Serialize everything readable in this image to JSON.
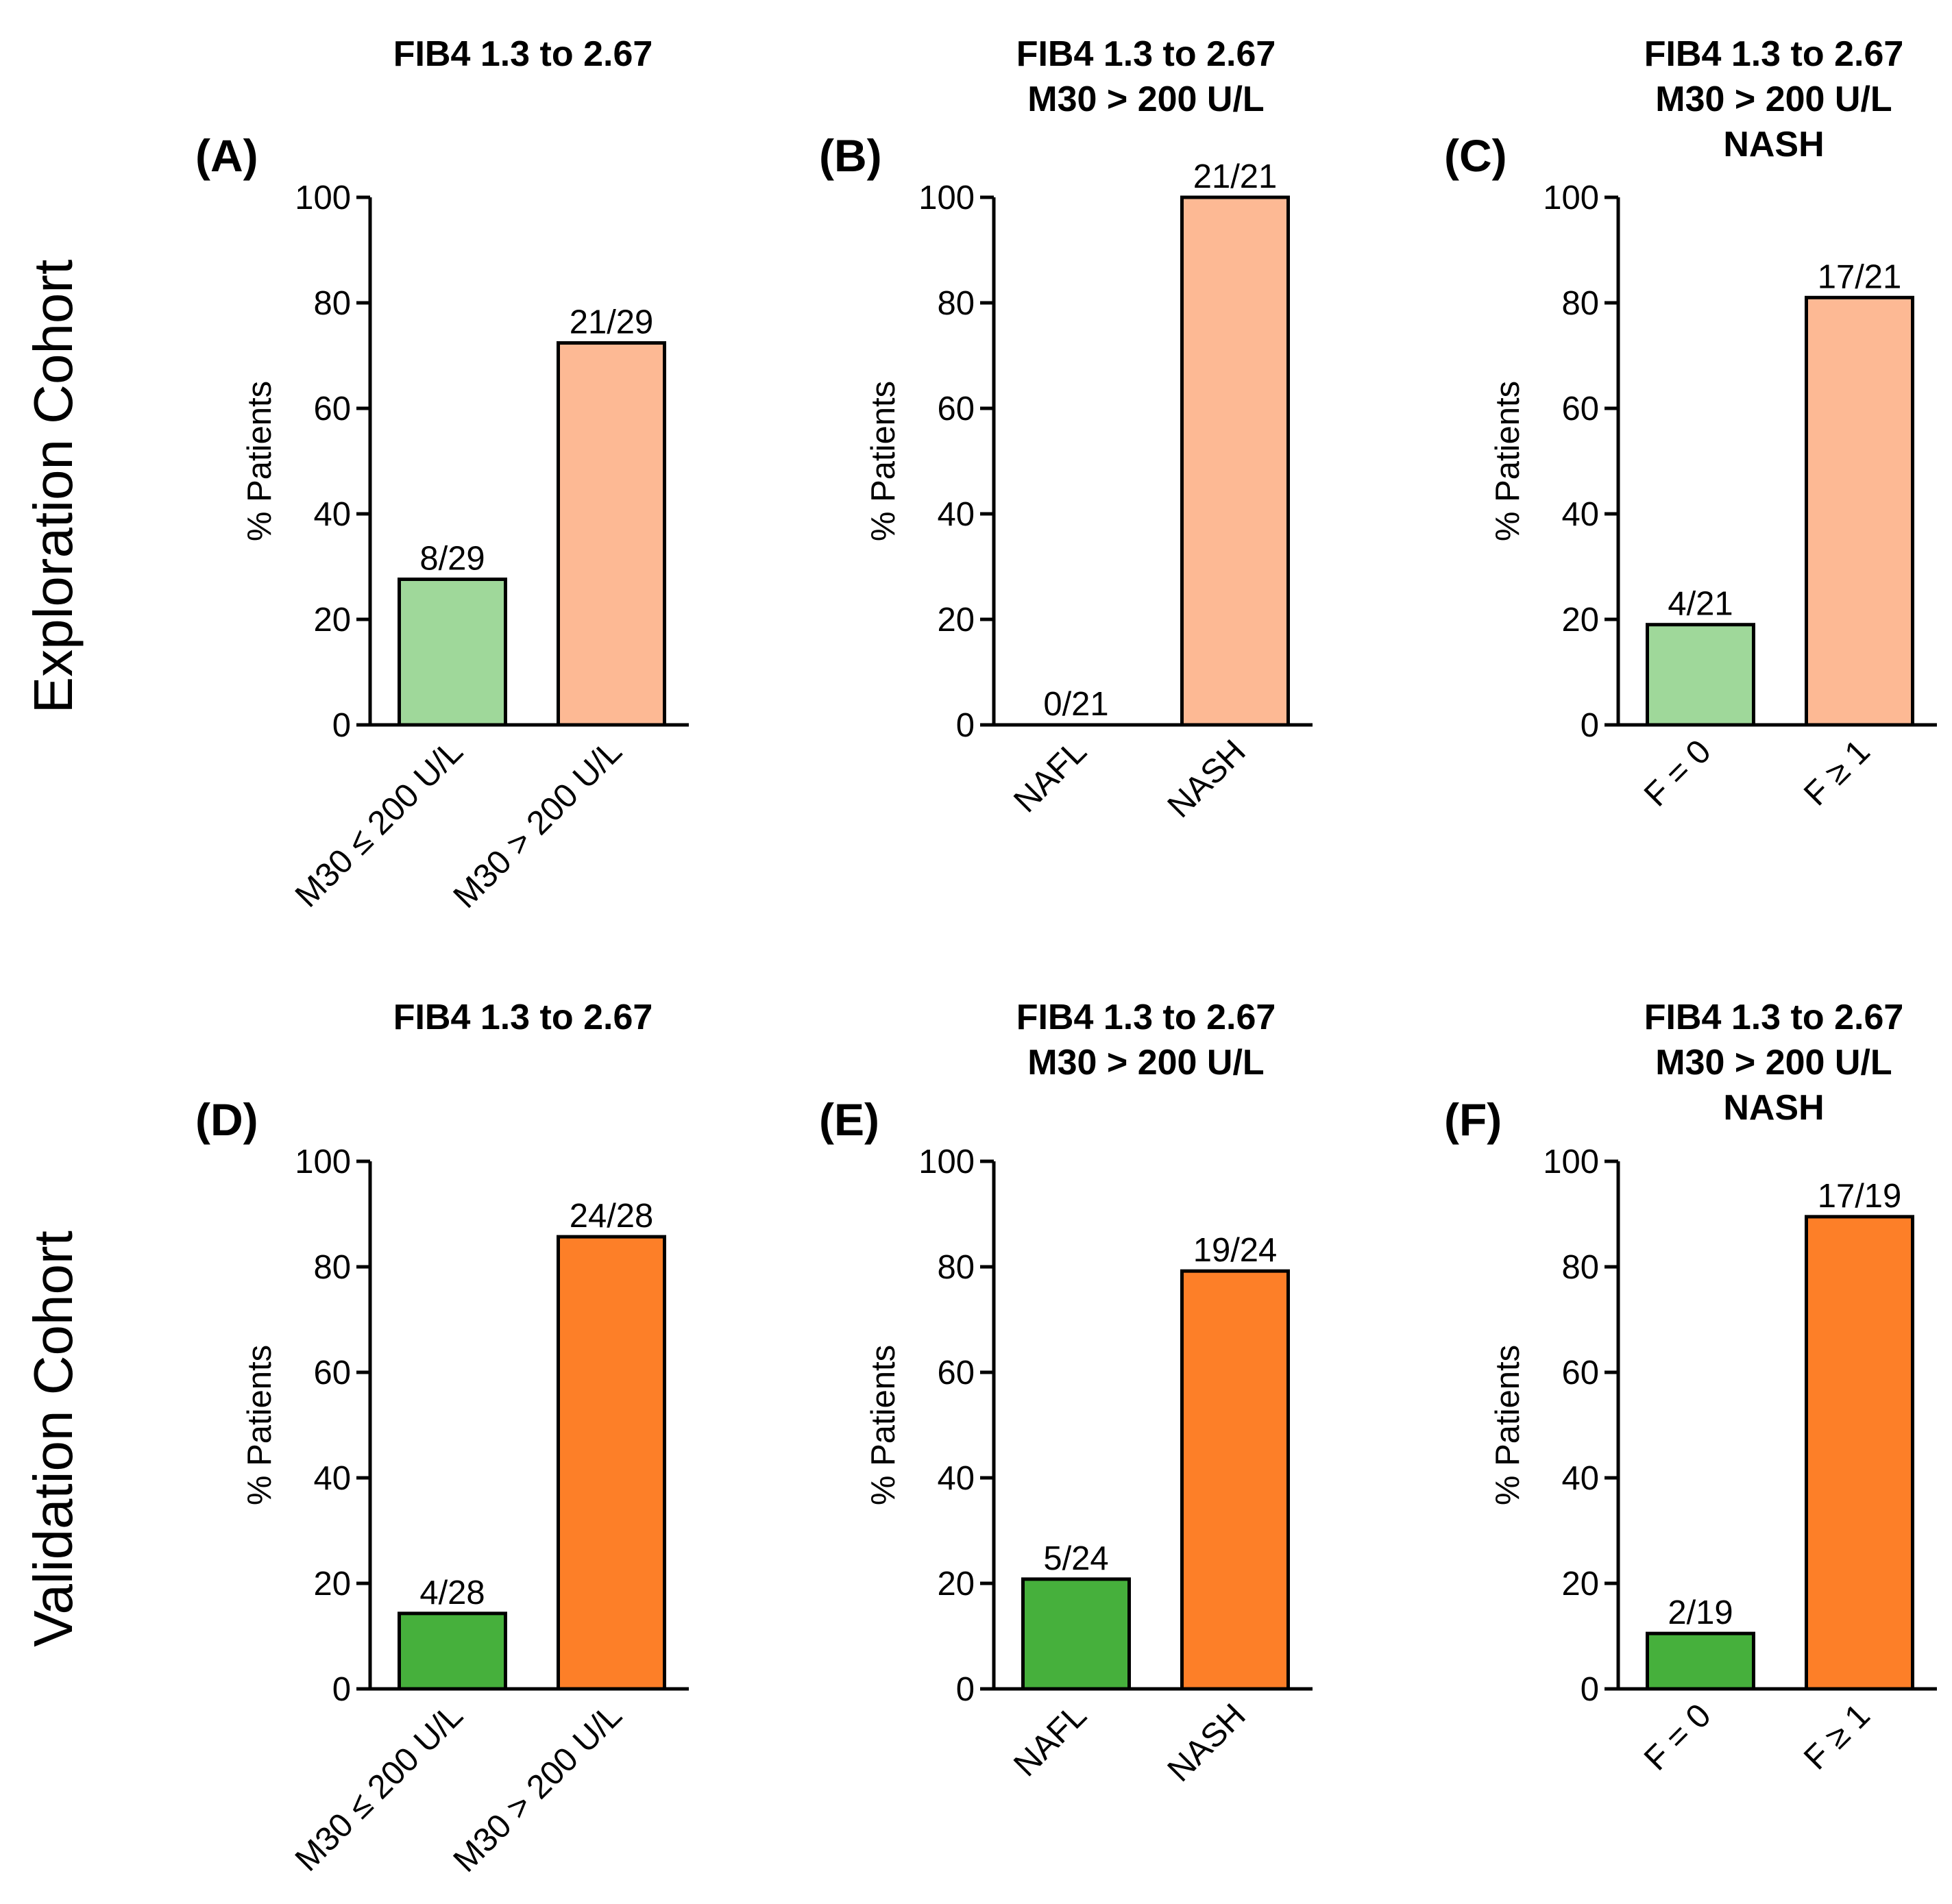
{
  "row_labels": [
    "Exploration Cohort",
    "Validation Cohort"
  ],
  "colors": {
    "light_green": "#9fd89a",
    "light_orange": "#fdb994",
    "green": "#46b03c",
    "orange": "#fd7f28"
  },
  "chart_data": [
    {
      "panel": "(A)",
      "type": "bar",
      "title": [
        "FIB4 1.3 to 2.67"
      ],
      "ylabel": "% Patients",
      "ylim": [
        0,
        100
      ],
      "yticks": [
        "0",
        "20",
        "40",
        "60",
        "80",
        "100"
      ],
      "categories": [
        "M30 ≤ 200 U/L",
        "M30 > 200 U/L"
      ],
      "values": [
        27.6,
        72.4
      ],
      "labels": [
        "8/29",
        "21/29"
      ],
      "colors": [
        "#9fd89a",
        "#fdb994"
      ]
    },
    {
      "panel": "(B)",
      "type": "bar",
      "title": [
        "FIB4 1.3 to 2.67",
        "M30 > 200 U/L"
      ],
      "ylabel": "% Patients",
      "ylim": [
        0,
        100
      ],
      "yticks": [
        "0",
        "20",
        "40",
        "60",
        "80",
        "100"
      ],
      "categories": [
        "NAFL",
        "NASH"
      ],
      "values": [
        0,
        100
      ],
      "labels": [
        "0/21",
        "21/21"
      ],
      "colors": [
        "#9fd89a",
        "#fdb994"
      ]
    },
    {
      "panel": "(C)",
      "type": "bar",
      "title": [
        "FIB4 1.3 to 2.67",
        "M30 > 200 U/L",
        "NASH"
      ],
      "ylabel": "% Patients",
      "ylim": [
        0,
        100
      ],
      "yticks": [
        "0",
        "20",
        "40",
        "60",
        "80",
        "100"
      ],
      "categories": [
        "F = 0",
        "F ≥ 1"
      ],
      "values": [
        19.0,
        81.0
      ],
      "labels": [
        "4/21",
        "17/21"
      ],
      "colors": [
        "#9fd89a",
        "#fdb994"
      ]
    },
    {
      "panel": "(D)",
      "type": "bar",
      "title": [
        "FIB4 1.3 to 2.67"
      ],
      "ylabel": "% Patients",
      "ylim": [
        0,
        100
      ],
      "yticks": [
        "0",
        "20",
        "40",
        "60",
        "80",
        "100"
      ],
      "categories": [
        "M30 ≤ 200 U/L",
        "M30 > 200 U/L"
      ],
      "values": [
        14.3,
        85.7
      ],
      "labels": [
        "4/28",
        "24/28"
      ],
      "colors": [
        "#46b03c",
        "#fd7f28"
      ]
    },
    {
      "panel": "(E)",
      "type": "bar",
      "title": [
        "FIB4 1.3 to 2.67",
        "M30 > 200 U/L"
      ],
      "ylabel": "% Patients",
      "ylim": [
        0,
        100
      ],
      "yticks": [
        "0",
        "20",
        "40",
        "60",
        "80",
        "100"
      ],
      "categories": [
        "NAFL",
        "NASH"
      ],
      "values": [
        20.8,
        79.2
      ],
      "labels": [
        "5/24",
        "19/24"
      ],
      "colors": [
        "#46b03c",
        "#fd7f28"
      ]
    },
    {
      "panel": "(F)",
      "type": "bar",
      "title": [
        "FIB4 1.3 to 2.67",
        "M30 > 200 U/L",
        "NASH"
      ],
      "ylabel": "% Patients",
      "ylim": [
        0,
        100
      ],
      "yticks": [
        "0",
        "20",
        "40",
        "60",
        "80",
        "100"
      ],
      "categories": [
        "F = 0",
        "F ≥ 1"
      ],
      "values": [
        10.5,
        89.5
      ],
      "labels": [
        "2/19",
        "17/19"
      ],
      "colors": [
        "#46b03c",
        "#fd7f28"
      ]
    }
  ]
}
